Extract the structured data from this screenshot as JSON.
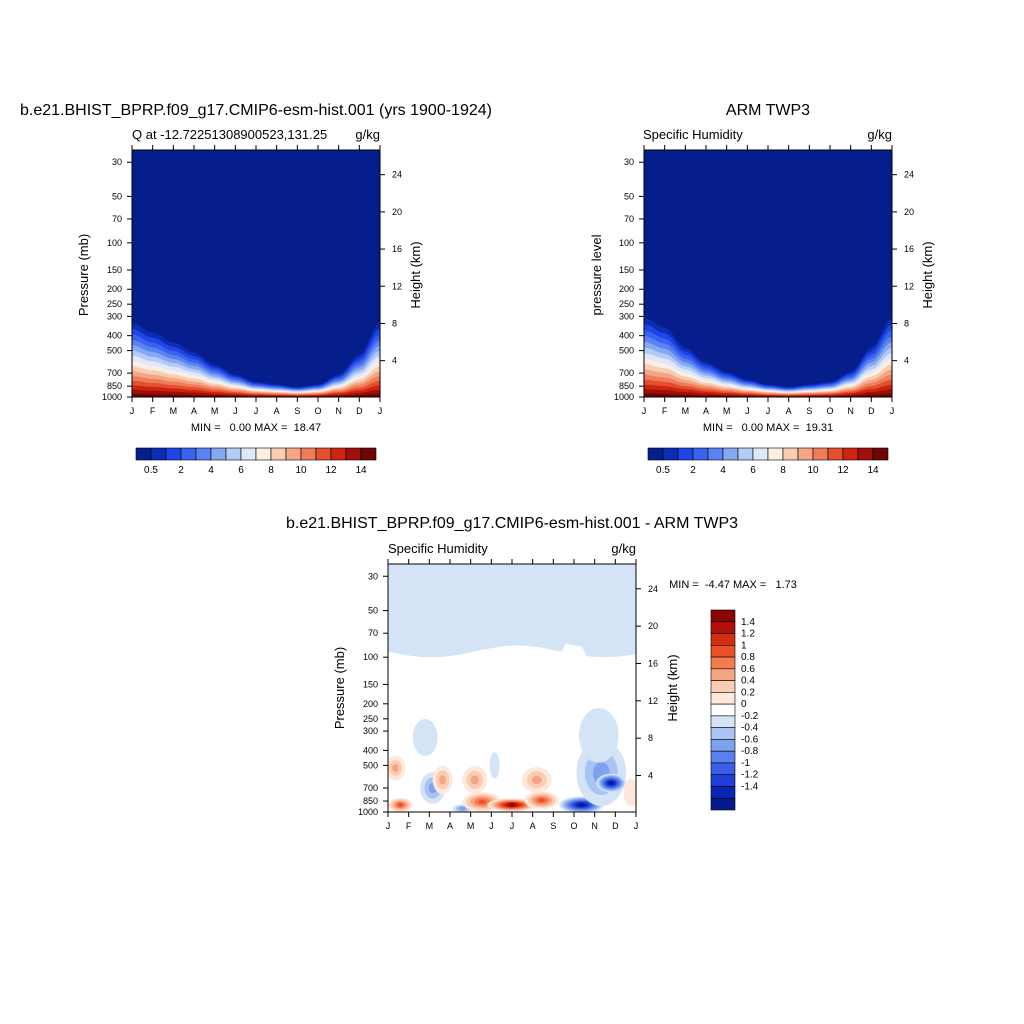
{
  "chart_data": [
    {
      "type": "heatmap",
      "title": "b.e21.BHIST_BPRP.f09_g17.CMIP6-esm-hist.001 (yrs 1900-1924)",
      "left_label": "Q at -12.72251308900523,131.25",
      "units": "g/kg",
      "ylabel": "Pressure (mb)",
      "y2label": "Height (km)",
      "x_ticks": [
        "J",
        "F",
        "M",
        "A",
        "M",
        "J",
        "J",
        "A",
        "S",
        "O",
        "N",
        "D",
        "J"
      ],
      "y_ticks": [
        30,
        50,
        70,
        100,
        150,
        200,
        250,
        300,
        400,
        500,
        700,
        850,
        1000
      ],
      "y2_ticks": [
        24,
        20,
        16,
        12,
        8,
        4
      ],
      "ylim": [
        1000,
        25
      ],
      "y_scale": "log",
      "stats_text": "MIN =   0.00 MAX =  18.47",
      "min": 0.0,
      "max": 18.47,
      "colorbar": {
        "orientation": "horizontal",
        "labels": [
          "0.5",
          "2",
          "4",
          "6",
          "8",
          "10",
          "12",
          "14"
        ],
        "levels": [
          0.5,
          1,
          2,
          3,
          4,
          5,
          6,
          7,
          8,
          9,
          10,
          11,
          12,
          13,
          14
        ],
        "colors": [
          "#061d8c",
          "#0a2eb8",
          "#1f45e6",
          "#3a62ee",
          "#5a82f0",
          "#86a8f2",
          "#b4cbf5",
          "#dde8fa",
          "#fbeee3",
          "#f8cdb3",
          "#f4a585",
          "#ee7d59",
          "#e54e30",
          "#cc2410",
          "#a00e08",
          "#700505"
        ]
      },
      "profile_relative_surface_height": [
        0.3,
        0.26,
        0.22,
        0.18,
        0.13,
        0.09,
        0.06,
        0.05,
        0.04,
        0.05,
        0.09,
        0.17,
        0.3
      ]
    },
    {
      "type": "heatmap",
      "title": "ARM TWP3",
      "left_label": "Specific Humidity",
      "units": "g/kg",
      "ylabel": "pressure level",
      "y2label": "Height (km)",
      "x_ticks": [
        "J",
        "F",
        "M",
        "A",
        "M",
        "J",
        "J",
        "A",
        "S",
        "O",
        "N",
        "D",
        "J"
      ],
      "y_ticks": [
        30,
        50,
        70,
        100,
        150,
        200,
        250,
        300,
        400,
        500,
        700,
        850,
        1000
      ],
      "y2_ticks": [
        24,
        20,
        16,
        12,
        8,
        4
      ],
      "ylim": [
        1000,
        25
      ],
      "y_scale": "log",
      "stats_text": "MIN =   0.00 MAX =  19.31",
      "min": 0.0,
      "max": 19.31,
      "colorbar": {
        "orientation": "horizontal",
        "labels": [
          "0.5",
          "2",
          "4",
          "6",
          "8",
          "10",
          "12",
          "14"
        ],
        "levels": [
          0.5,
          1,
          2,
          3,
          4,
          5,
          6,
          7,
          8,
          9,
          10,
          11,
          12,
          13,
          14
        ],
        "colors": [
          "#061d8c",
          "#0a2eb8",
          "#1f45e6",
          "#3a62ee",
          "#5a82f0",
          "#86a8f2",
          "#b4cbf5",
          "#dde8fa",
          "#fbeee3",
          "#f8cdb3",
          "#f4a585",
          "#ee7d59",
          "#e54e30",
          "#cc2410",
          "#a00e08",
          "#700505"
        ]
      },
      "profile_relative_surface_height": [
        0.32,
        0.28,
        0.2,
        0.14,
        0.1,
        0.07,
        0.05,
        0.04,
        0.05,
        0.06,
        0.1,
        0.2,
        0.32
      ]
    },
    {
      "type": "heatmap",
      "title": "b.e21.BHIST_BPRP.f09_g17.CMIP6-esm-hist.001 - ARM TWP3",
      "left_label": "Specific Humidity",
      "units": "g/kg",
      "ylabel": "Pressure (mb)",
      "y2label": "Height (km)",
      "x_ticks": [
        "J",
        "F",
        "M",
        "A",
        "M",
        "J",
        "J",
        "A",
        "S",
        "O",
        "N",
        "D",
        "J"
      ],
      "y_ticks": [
        30,
        50,
        70,
        100,
        150,
        200,
        250,
        300,
        400,
        500,
        700,
        850,
        1000
      ],
      "y2_ticks": [
        24,
        20,
        16,
        12,
        8,
        4
      ],
      "ylim": [
        1000,
        25
      ],
      "y_scale": "log",
      "stats_text": "MIN =  -4.47 MAX =   1.73",
      "min": -4.47,
      "max": 1.73,
      "colorbar": {
        "orientation": "vertical",
        "labels": [
          "1.4",
          "1.2",
          "1",
          "0.8",
          "0.6",
          "0.4",
          "0.2",
          "0",
          "-0.2",
          "-0.4",
          "-0.6",
          "-0.8",
          "-1",
          "-1.2",
          "-1.4"
        ],
        "colors": [
          "#8c0505",
          "#b01208",
          "#d42e10",
          "#ec5028",
          "#f47a52",
          "#f6a584",
          "#f9ccb4",
          "#fde8d9",
          "#ffffff",
          "#d3e4f7",
          "#a9c4f2",
          "#7ea2ee",
          "#5a82ee",
          "#3a5ee8",
          "#1f3fd8",
          "#0a26b4",
          "#061a8a"
        ]
      },
      "background_value_above_100mb": -0.1,
      "background_value_100_to_250mb": 0.1
    }
  ]
}
